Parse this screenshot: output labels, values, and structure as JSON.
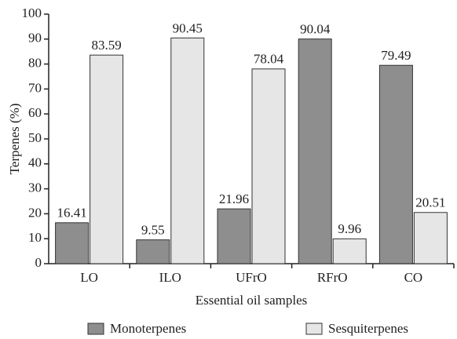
{
  "chart_data": {
    "type": "bar",
    "categories": [
      "LO",
      "ILO",
      "UFrO",
      "RFrO",
      "CO"
    ],
    "series": [
      {
        "name": "Monoterpenes",
        "color": "#8e8e8e",
        "values": [
          16.41,
          9.55,
          21.96,
          90.04,
          79.49
        ]
      },
      {
        "name": "Sesquiterpenes",
        "color": "#e6e6e6",
        "values": [
          83.59,
          90.45,
          78.04,
          9.96,
          20.51
        ]
      }
    ],
    "xlabel": "Essential oil samples",
    "ylabel": "Terpenes (%)",
    "ylim": [
      0,
      100
    ],
    "yticks": [
      0,
      10,
      20,
      30,
      40,
      50,
      60,
      70,
      80,
      90,
      100
    ],
    "grid": false,
    "legend": "bottom"
  }
}
